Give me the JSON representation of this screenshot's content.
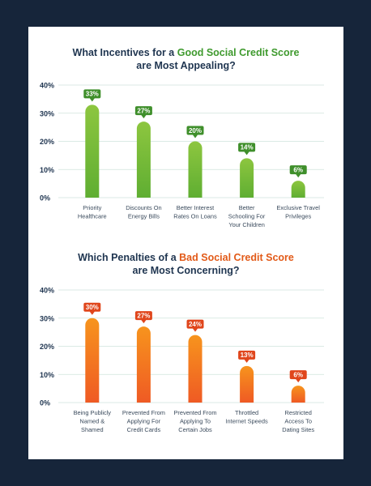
{
  "colors": {
    "page_background": "#16253a",
    "card_background": "#ffffff",
    "title_color": "#1f3550",
    "good_accent": "#3f9a2e",
    "bad_accent": "#e25a18",
    "grid_line": "#cfe3dc"
  },
  "chart1": {
    "title_pre": "What Incentives for a ",
    "title_emph": "Good Social Credit Score",
    "title_line2": "are Most Appealing?"
  },
  "chart2": {
    "title_pre": "Which Penalties of a ",
    "title_emph": "Bad Social Credit Score",
    "title_line2": "are Most Concerning?"
  },
  "chart_data": [
    {
      "type": "bar",
      "title": "What Incentives for a Good Social Credit Score are Most Appealing?",
      "xlabel": "",
      "ylabel": "",
      "ylim": [
        0,
        40
      ],
      "yticks": [
        "0%",
        "10%",
        "20%",
        "30%",
        "40%"
      ],
      "grid": true,
      "categories": [
        [
          "Priority",
          "Healthcare"
        ],
        [
          "Discounts On",
          "Energy Bills"
        ],
        [
          "Better Interest",
          "Rates On Loans"
        ],
        [
          "Better",
          "Schooling For",
          "Your Children"
        ],
        [
          "Exclusive Travel",
          "Privileges"
        ]
      ],
      "values": [
        33,
        27,
        20,
        14,
        6
      ],
      "data_labels": [
        "33%",
        "27%",
        "20%",
        "14%",
        "6%"
      ],
      "bar_color_top": "#8dc63f",
      "bar_color_bottom": "#5fae32",
      "label_color": "#3f8f2b"
    },
    {
      "type": "bar",
      "title": "Which Penalties of a Bad Social Credit Score are Most Concerning?",
      "xlabel": "",
      "ylabel": "",
      "ylim": [
        0,
        40
      ],
      "yticks": [
        "0%",
        "10%",
        "20%",
        "30%",
        "40%"
      ],
      "grid": true,
      "categories": [
        [
          "Being Publicly",
          "Named &",
          "Shamed"
        ],
        [
          "Prevented From",
          "Applying For",
          "Credit Cards"
        ],
        [
          "Prevented From",
          "Applying To",
          "Certain Jobs"
        ],
        [
          "Throttled",
          "Internet Speeds"
        ],
        [
          "Restricted",
          "Access To",
          "Dating Sites"
        ]
      ],
      "values": [
        30,
        27,
        24,
        13,
        6
      ],
      "data_labels": [
        "30%",
        "27%",
        "24%",
        "13%",
        "6%"
      ],
      "bar_color_top": "#f7941d",
      "bar_color_bottom": "#ef5a24",
      "label_color": "#e0461c"
    }
  ]
}
